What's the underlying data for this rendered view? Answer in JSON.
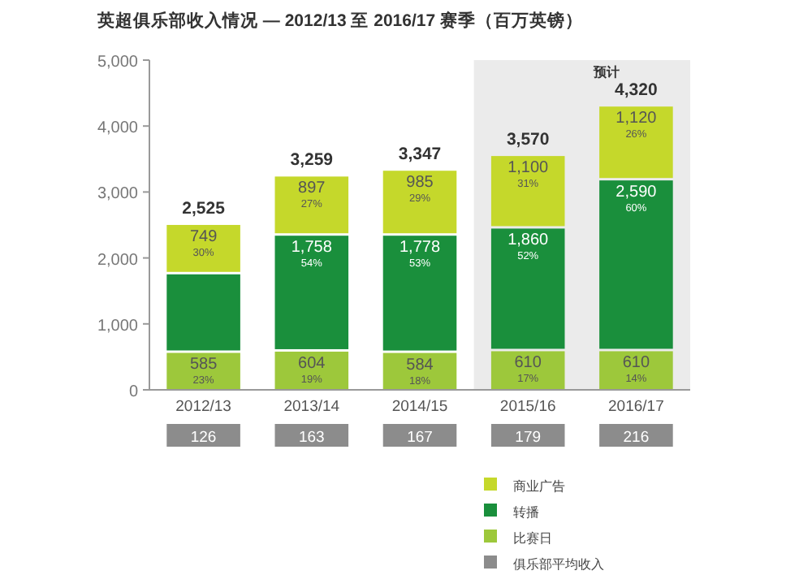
{
  "chart_data": {
    "type": "bar",
    "stacked": true,
    "title": "英超俱乐部收入情况 — 2012/13 至 2016/17 赛季（百万英镑）",
    "categories": [
      "2012/13",
      "2013/14",
      "2014/15",
      "2015/16",
      "2016/17"
    ],
    "series": [
      {
        "name": "比赛日",
        "color": "#9dc83b",
        "values": [
          585,
          604,
          584,
          610,
          610
        ],
        "value_labels": [
          "585\n23%",
          "604\n19%",
          "584\n18%",
          "610\n17%",
          "610\n14%"
        ]
      },
      {
        "name": "转播",
        "color": "#1a8f3c",
        "values": [
          1191,
          1758,
          1778,
          1860,
          2590
        ],
        "value_labels": [
          null,
          "1,758\n54%",
          "1,778\n53%",
          "1,860\n52%",
          "2,590\n60%"
        ]
      },
      {
        "name": "商业广告",
        "color": "#c5d82b",
        "values": [
          749,
          897,
          985,
          1100,
          1120
        ],
        "value_labels": [
          "749\n30%",
          "897\n27%",
          "985\n29%",
          "1,100\n31%",
          "1,120\n26%"
        ]
      }
    ],
    "annotations": [
      "俱乐部平均收入",
      "126",
      "163",
      "167",
      "179",
      "216"
    ],
    "totals": [
      "2,525",
      "3,259",
      "3,347",
      "3,570",
      "4,320"
    ],
    "ylim": [
      0,
      5000
    ],
    "yticks": [
      {
        "value": 0,
        "label": "0"
      },
      {
        "value": 1000,
        "label": "1,000"
      },
      {
        "value": 2000,
        "label": "2,000"
      },
      {
        "value": 3000,
        "label": "3,000"
      },
      {
        "value": 4000,
        "label": "4,000"
      },
      {
        "value": 5000,
        "label": "5,000"
      }
    ],
    "bands": [
      {
        "axis": "x",
        "from": "2015/16",
        "to": "2016/17",
        "label": "预计",
        "color": "#ebebeb"
      }
    ],
    "grid": false,
    "legend": "bottom right"
  }
}
